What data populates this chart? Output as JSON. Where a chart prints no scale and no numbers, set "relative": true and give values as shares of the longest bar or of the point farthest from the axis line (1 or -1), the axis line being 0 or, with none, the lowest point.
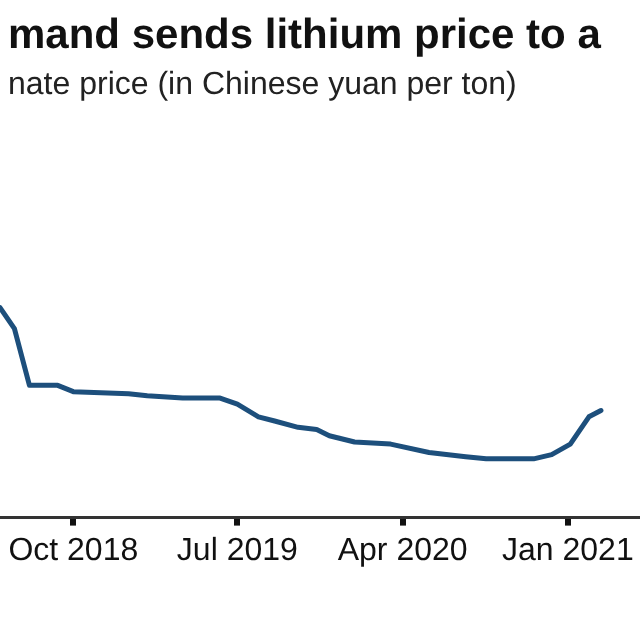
{
  "chart_data": {
    "type": "line",
    "title": "mand sends lithium price to a",
    "subtitle": "nate price (in Chinese yuan per ton)",
    "relative": true,
    "legend": false,
    "marker": "none",
    "line_style": "solid",
    "x": [
      "2018-06-01",
      "2018-06-25",
      "2018-07-20",
      "2018-09-05",
      "2018-10-01",
      "2019-01-01",
      "2019-02-01",
      "2019-04-01",
      "2019-06-01",
      "2019-07-01",
      "2019-08-05",
      "2019-09-01",
      "2019-10-10",
      "2019-11-10",
      "2019-12-01",
      "2020-01-12",
      "2020-03-12",
      "2020-05-15",
      "2020-07-15",
      "2020-08-18",
      "2020-11-05",
      "2020-12-05",
      "2021-01-05",
      "2021-02-05",
      "2021-02-25"
    ],
    "xlim": [
      "2018-06-01",
      "2021-05-01"
    ],
    "xticks": [
      {
        "value": "2018-10-01",
        "label": "Oct 2018"
      },
      {
        "value": "2019-07-01",
        "label": "Jul 2019"
      },
      {
        "value": "2020-04-01",
        "label": "Apr 2020"
      },
      {
        "value": "2021-01-01",
        "label": "Jan 2021"
      }
    ],
    "series": [
      {
        "color": "#1d4f7c",
        "values": [
          1,
          0.9,
          0.63,
          0.63,
          0.6,
          0.59,
          0.58,
          0.57,
          0.57,
          0.54,
          0.48,
          0.46,
          0.43,
          0.42,
          0.39,
          0.36,
          0.35,
          0.31,
          0.29,
          0.28,
          0.28,
          0.3,
          0.35,
          0.48,
          0.51
        ]
      }
    ]
  }
}
